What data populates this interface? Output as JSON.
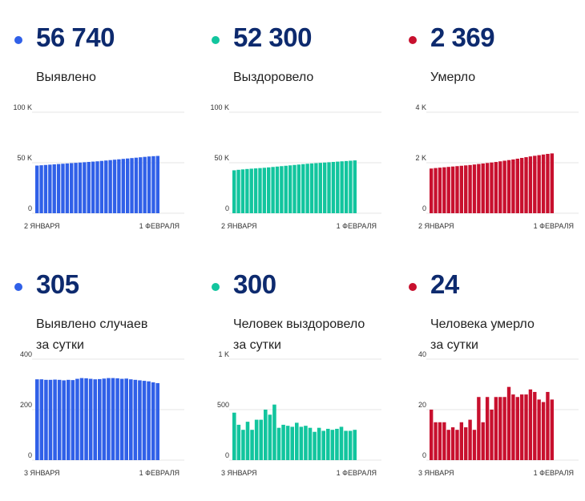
{
  "colors": {
    "blue": "#3060e8",
    "teal": "#12c59e",
    "red": "#c8102e",
    "text_dark": "#0d2a6e",
    "grid": "#e6e6e6"
  },
  "panels": [
    {
      "id": "detected-total",
      "color": "#3060e8",
      "value": "56 740",
      "label_lines": [
        "Выявлено"
      ]
    },
    {
      "id": "recovered-total",
      "color": "#12c59e",
      "value": "52 300",
      "label_lines": [
        "Выздоровело"
      ]
    },
    {
      "id": "died-total",
      "color": "#c8102e",
      "value": "2 369",
      "label_lines": [
        "Умерло"
      ]
    },
    {
      "id": "detected-daily",
      "color": "#3060e8",
      "value": "305",
      "label_lines": [
        "Выявлено случаев",
        "за сутки"
      ]
    },
    {
      "id": "recovered-daily",
      "color": "#12c59e",
      "value": "300",
      "label_lines": [
        "Человек выздоровело",
        "за сутки"
      ]
    },
    {
      "id": "died-daily",
      "color": "#c8102e",
      "value": "24",
      "label_lines": [
        "Человека умерло",
        "за сутки"
      ]
    }
  ],
  "chart_data": [
    {
      "type": "bar",
      "title": "",
      "ylim": [
        0,
        100000
      ],
      "yticks": [
        0,
        50000,
        100000
      ],
      "ytick_labels": [
        "0",
        "50 K",
        "100 K"
      ],
      "x_start_label": "2 ЯНВАРЯ",
      "x_end_label": "1 ФЕВРАЛЯ",
      "values": [
        47200,
        47500,
        47800,
        48100,
        48400,
        48700,
        49000,
        49300,
        49600,
        49900,
        50200,
        50500,
        50800,
        51100,
        51400,
        51800,
        52200,
        52600,
        53000,
        53400,
        53800,
        54200,
        54600,
        55000,
        55400,
        55800,
        56200,
        56500,
        56740
      ]
    },
    {
      "type": "bar",
      "title": "",
      "ylim": [
        0,
        100000
      ],
      "yticks": [
        0,
        50000,
        100000
      ],
      "ytick_labels": [
        "0",
        "50 K",
        "100 K"
      ],
      "x_start_label": "2 ЯНВАРЯ",
      "x_end_label": "1 ФЕВРАЛЯ",
      "values": [
        42500,
        43000,
        43400,
        43800,
        44100,
        44400,
        44700,
        45000,
        45400,
        45800,
        46200,
        46600,
        47000,
        47400,
        47800,
        48200,
        48600,
        49000,
        49300,
        49600,
        49900,
        50200,
        50500,
        50800,
        51100,
        51400,
        51700,
        52000,
        52300
      ]
    },
    {
      "type": "bar",
      "title": "",
      "ylim": [
        0,
        4000
      ],
      "yticks": [
        0,
        2000,
        4000
      ],
      "ytick_labels": [
        "0",
        "2 K",
        "4 K"
      ],
      "x_start_label": "2 ЯНВАРЯ",
      "x_end_label": "1 ФЕВРАЛЯ",
      "values": [
        1770,
        1790,
        1805,
        1820,
        1835,
        1850,
        1865,
        1880,
        1895,
        1910,
        1930,
        1950,
        1970,
        1990,
        2010,
        2030,
        2055,
        2080,
        2105,
        2130,
        2160,
        2190,
        2220,
        2250,
        2275,
        2300,
        2325,
        2350,
        2369
      ]
    },
    {
      "type": "bar",
      "title": "",
      "ylim": [
        0,
        400
      ],
      "yticks": [
        0,
        200,
        400
      ],
      "ytick_labels": [
        "0",
        "200",
        "400"
      ],
      "x_start_label": "3 ЯНВАРЯ",
      "x_end_label": "1 ФЕВРАЛЯ",
      "values": [
        320,
        320,
        318,
        318,
        319,
        318,
        316,
        318,
        317,
        322,
        325,
        324,
        322,
        320,
        321,
        323,
        325,
        325,
        324,
        322,
        323,
        320,
        318,
        316,
        314,
        312,
        308,
        305
      ]
    },
    {
      "type": "bar",
      "title": "",
      "ylim": [
        0,
        1000
      ],
      "yticks": [
        0,
        500,
        1000
      ],
      "ytick_labels": [
        "0",
        "500",
        "1 K"
      ],
      "x_start_label": "3 ЯНВАРЯ",
      "x_end_label": "1 ФЕВРАЛЯ",
      "values": [
        470,
        350,
        300,
        380,
        300,
        400,
        400,
        500,
        450,
        550,
        320,
        350,
        340,
        330,
        370,
        330,
        340,
        320,
        280,
        320,
        290,
        310,
        300,
        310,
        330,
        290,
        290,
        300
      ]
    },
    {
      "type": "bar",
      "title": "",
      "ylim": [
        0,
        40
      ],
      "yticks": [
        0,
        20,
        40
      ],
      "ytick_labels": [
        "0",
        "20",
        "40"
      ],
      "x_start_label": "3 ЯНВАРЯ",
      "x_end_label": "1 ФЕВРАЛЯ",
      "values": [
        20,
        15,
        15,
        15,
        12,
        13,
        12,
        15,
        13,
        16,
        12,
        25,
        15,
        25,
        20,
        25,
        25,
        25,
        29,
        26,
        25,
        26,
        26,
        28,
        27,
        24,
        23,
        27,
        24
      ]
    }
  ]
}
